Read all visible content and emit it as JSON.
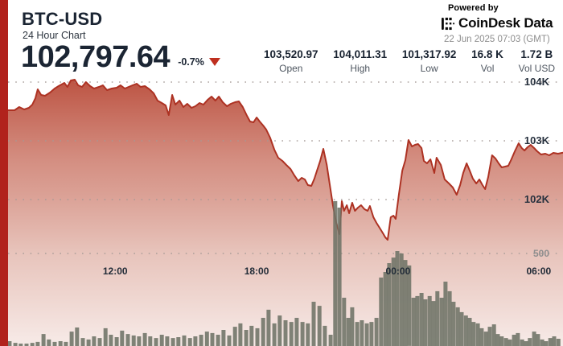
{
  "header": {
    "symbol": "BTC-USD",
    "subtitle": "24 Hour Chart",
    "price": "102,797.64",
    "change": "-0.7%"
  },
  "powered": {
    "label": "Powered by",
    "brand": "CoinDesk Data",
    "timestamp": "22 Jun 2025 07:03 (GMT)"
  },
  "stats": [
    {
      "value": "103,520.97",
      "label": "Open"
    },
    {
      "value": "104,011.31",
      "label": "High"
    },
    {
      "value": "101,317.92",
      "label": "Low"
    },
    {
      "value": "16.8 K",
      "label": "Vol"
    },
    {
      "value": "1.72 B",
      "label": "Vol USD"
    }
  ],
  "colors": {
    "accent": "#b1221c",
    "line": "#ad3223",
    "fill_top": "#b84836",
    "fill_mid": "#cd7c6d",
    "fill_low": "#e6c0b7",
    "fill_bottom": "#f7ebe8",
    "volume": "#6e7366",
    "grid": "#a59a96",
    "navy": "#1b2533"
  },
  "chart_data": {
    "type": "area",
    "title": "BTC-USD 24 Hour Chart",
    "x_axis": {
      "total_minutes": 1440,
      "ticks": [
        {
          "label": "12:00",
          "m": 278
        },
        {
          "label": "18:00",
          "m": 645
        },
        {
          "label": "00:00",
          "m": 1012
        },
        {
          "label": "06:00",
          "m": 1377
        }
      ]
    },
    "y_axis": {
      "price_ticks": [
        {
          "label": "104K",
          "value": 104000
        },
        {
          "label": "103K",
          "value": 103000
        },
        {
          "label": "102K",
          "value": 102000
        }
      ],
      "volume_tick": {
        "label": "500",
        "value": 500
      }
    },
    "price_series": [
      [
        0,
        103521
      ],
      [
        17,
        103521
      ],
      [
        29,
        103575
      ],
      [
        42,
        103534
      ],
      [
        54,
        103562
      ],
      [
        63,
        103617
      ],
      [
        71,
        103726
      ],
      [
        77,
        103877
      ],
      [
        86,
        103781
      ],
      [
        96,
        103767
      ],
      [
        109,
        103822
      ],
      [
        121,
        103891
      ],
      [
        131,
        103932
      ],
      [
        146,
        103986
      ],
      [
        154,
        103918
      ],
      [
        163,
        104028
      ],
      [
        173,
        104041
      ],
      [
        182,
        103945
      ],
      [
        192,
        103918
      ],
      [
        202,
        104000
      ],
      [
        213,
        103932
      ],
      [
        223,
        103891
      ],
      [
        236,
        103918
      ],
      [
        246,
        103945
      ],
      [
        257,
        103863
      ],
      [
        269,
        103891
      ],
      [
        282,
        103904
      ],
      [
        292,
        103945
      ],
      [
        303,
        103891
      ],
      [
        313,
        103918
      ],
      [
        323,
        103945
      ],
      [
        334,
        103973
      ],
      [
        344,
        103918
      ],
      [
        355,
        103932
      ],
      [
        367,
        103877
      ],
      [
        378,
        103808
      ],
      [
        388,
        103685
      ],
      [
        399,
        103644
      ],
      [
        409,
        103603
      ],
      [
        417,
        103438
      ],
      [
        426,
        103781
      ],
      [
        434,
        103617
      ],
      [
        445,
        103685
      ],
      [
        455,
        103575
      ],
      [
        465,
        103630
      ],
      [
        476,
        103562
      ],
      [
        486,
        103589
      ],
      [
        497,
        103644
      ],
      [
        507,
        103617
      ],
      [
        518,
        103699
      ],
      [
        528,
        103754
      ],
      [
        538,
        103685
      ],
      [
        547,
        103754
      ],
      [
        557,
        103658
      ],
      [
        568,
        103589
      ],
      [
        578,
        103630
      ],
      [
        589,
        103658
      ],
      [
        599,
        103671
      ],
      [
        609,
        103575
      ],
      [
        620,
        103425
      ],
      [
        628,
        103329
      ],
      [
        637,
        103315
      ],
      [
        645,
        103397
      ],
      [
        653,
        103329
      ],
      [
        662,
        103260
      ],
      [
        670,
        103192
      ],
      [
        680,
        103055
      ],
      [
        691,
        102849
      ],
      [
        701,
        102712
      ],
      [
        712,
        102658
      ],
      [
        722,
        102589
      ],
      [
        733,
        102521
      ],
      [
        743,
        102411
      ],
      [
        753,
        102315
      ],
      [
        762,
        102370
      ],
      [
        770,
        102342
      ],
      [
        778,
        102247
      ],
      [
        787,
        102233
      ],
      [
        795,
        102356
      ],
      [
        801,
        102479
      ],
      [
        810,
        102658
      ],
      [
        818,
        102863
      ],
      [
        827,
        102589
      ],
      [
        835,
        102247
      ],
      [
        843,
        101904
      ],
      [
        852,
        101589
      ],
      [
        860,
        101411
      ],
      [
        866,
        101973
      ],
      [
        872,
        101808
      ],
      [
        879,
        101904
      ],
      [
        885,
        101767
      ],
      [
        893,
        101945
      ],
      [
        900,
        101808
      ],
      [
        908,
        101863
      ],
      [
        916,
        101904
      ],
      [
        925,
        101836
      ],
      [
        933,
        101808
      ],
      [
        939,
        101890
      ],
      [
        948,
        101699
      ],
      [
        956,
        101603
      ],
      [
        964,
        101521
      ],
      [
        973,
        101425
      ],
      [
        979,
        101356
      ],
      [
        985,
        101315
      ],
      [
        993,
        101699
      ],
      [
        1000,
        101726
      ],
      [
        1006,
        101671
      ],
      [
        1014,
        102082
      ],
      [
        1023,
        102493
      ],
      [
        1031,
        102671
      ],
      [
        1039,
        103014
      ],
      [
        1048,
        102904
      ],
      [
        1056,
        102932
      ],
      [
        1064,
        102945
      ],
      [
        1073,
        102877
      ],
      [
        1079,
        102658
      ],
      [
        1087,
        102616
      ],
      [
        1096,
        102685
      ],
      [
        1106,
        102452
      ],
      [
        1112,
        102712
      ],
      [
        1123,
        102589
      ],
      [
        1133,
        102342
      ],
      [
        1144,
        102274
      ],
      [
        1154,
        102205
      ],
      [
        1164,
        102082
      ],
      [
        1173,
        102247
      ],
      [
        1181,
        102452
      ],
      [
        1190,
        102616
      ],
      [
        1198,
        102493
      ],
      [
        1206,
        102356
      ],
      [
        1215,
        102274
      ],
      [
        1223,
        102342
      ],
      [
        1231,
        102247
      ],
      [
        1238,
        102178
      ],
      [
        1246,
        102384
      ],
      [
        1256,
        102753
      ],
      [
        1265,
        102699
      ],
      [
        1273,
        102616
      ],
      [
        1281,
        102548
      ],
      [
        1290,
        102562
      ],
      [
        1298,
        102575
      ],
      [
        1306,
        102685
      ],
      [
        1315,
        102822
      ],
      [
        1325,
        102959
      ],
      [
        1333,
        102877
      ],
      [
        1340,
        102836
      ],
      [
        1348,
        102890
      ],
      [
        1356,
        102932
      ],
      [
        1365,
        102877
      ],
      [
        1373,
        102822
      ],
      [
        1383,
        102767
      ],
      [
        1394,
        102781
      ],
      [
        1404,
        102753
      ],
      [
        1415,
        102795
      ],
      [
        1427,
        102781
      ],
      [
        1440,
        102798
      ]
    ],
    "volume_series": [
      [
        4,
        26
      ],
      [
        19,
        17
      ],
      [
        33,
        13
      ],
      [
        48,
        13
      ],
      [
        63,
        17
      ],
      [
        77,
        22
      ],
      [
        92,
        65
      ],
      [
        106,
        35
      ],
      [
        121,
        22
      ],
      [
        136,
        26
      ],
      [
        150,
        22
      ],
      [
        165,
        78
      ],
      [
        179,
        100
      ],
      [
        194,
        43
      ],
      [
        209,
        35
      ],
      [
        223,
        52
      ],
      [
        238,
        43
      ],
      [
        253,
        96
      ],
      [
        267,
        61
      ],
      [
        282,
        48
      ],
      [
        296,
        83
      ],
      [
        311,
        65
      ],
      [
        326,
        57
      ],
      [
        340,
        52
      ],
      [
        355,
        70
      ],
      [
        369,
        52
      ],
      [
        384,
        43
      ],
      [
        399,
        61
      ],
      [
        413,
        52
      ],
      [
        428,
        43
      ],
      [
        442,
        48
      ],
      [
        457,
        57
      ],
      [
        472,
        43
      ],
      [
        486,
        52
      ],
      [
        501,
        61
      ],
      [
        516,
        78
      ],
      [
        530,
        70
      ],
      [
        545,
        61
      ],
      [
        559,
        87
      ],
      [
        574,
        57
      ],
      [
        589,
        104
      ],
      [
        603,
        122
      ],
      [
        618,
        87
      ],
      [
        632,
        109
      ],
      [
        647,
        96
      ],
      [
        662,
        152
      ],
      [
        676,
        196
      ],
      [
        691,
        122
      ],
      [
        705,
        165
      ],
      [
        720,
        139
      ],
      [
        735,
        130
      ],
      [
        749,
        152
      ],
      [
        764,
        130
      ],
      [
        778,
        122
      ],
      [
        793,
        239
      ],
      [
        808,
        217
      ],
      [
        822,
        109
      ],
      [
        837,
        61
      ],
      [
        849,
        783
      ],
      [
        860,
        748
      ],
      [
        872,
        261
      ],
      [
        883,
        152
      ],
      [
        893,
        209
      ],
      [
        906,
        130
      ],
      [
        918,
        139
      ],
      [
        931,
        122
      ],
      [
        943,
        130
      ],
      [
        956,
        152
      ],
      [
        968,
        370
      ],
      [
        979,
        400
      ],
      [
        989,
        448
      ],
      [
        1000,
        478
      ],
      [
        1010,
        513
      ],
      [
        1021,
        500
      ],
      [
        1031,
        465
      ],
      [
        1041,
        435
      ],
      [
        1052,
        261
      ],
      [
        1062,
        270
      ],
      [
        1073,
        287
      ],
      [
        1083,
        252
      ],
      [
        1094,
        270
      ],
      [
        1104,
        243
      ],
      [
        1114,
        296
      ],
      [
        1125,
        261
      ],
      [
        1135,
        348
      ],
      [
        1146,
        296
      ],
      [
        1156,
        239
      ],
      [
        1167,
        209
      ],
      [
        1177,
        183
      ],
      [
        1188,
        165
      ],
      [
        1198,
        152
      ],
      [
        1208,
        130
      ],
      [
        1219,
        122
      ],
      [
        1229,
        96
      ],
      [
        1240,
        78
      ],
      [
        1250,
        104
      ],
      [
        1261,
        117
      ],
      [
        1271,
        65
      ],
      [
        1281,
        52
      ],
      [
        1292,
        43
      ],
      [
        1302,
        35
      ],
      [
        1313,
        61
      ],
      [
        1323,
        70
      ],
      [
        1334,
        35
      ],
      [
        1344,
        26
      ],
      [
        1354,
        43
      ],
      [
        1365,
        78
      ],
      [
        1375,
        65
      ],
      [
        1386,
        35
      ],
      [
        1396,
        26
      ],
      [
        1407,
        43
      ],
      [
        1417,
        52
      ],
      [
        1428,
        39
      ]
    ]
  }
}
